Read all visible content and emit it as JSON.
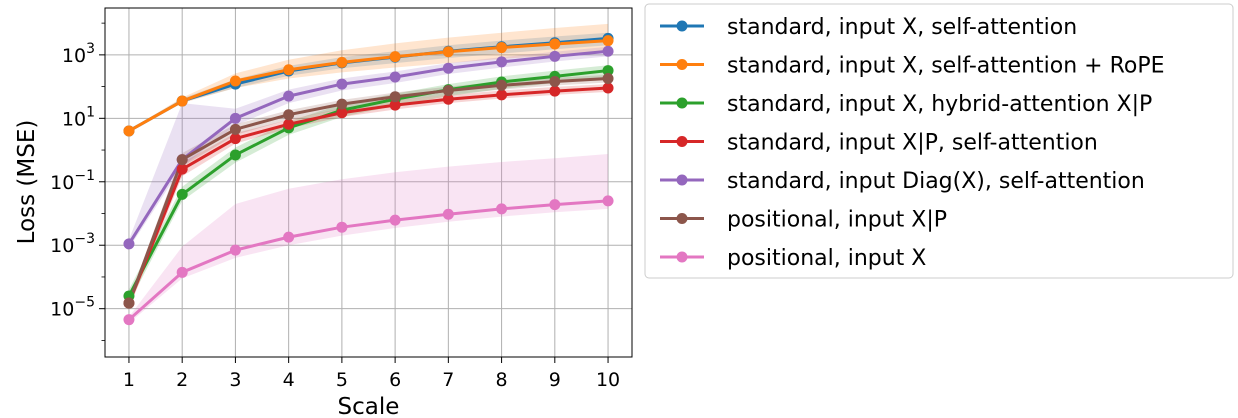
{
  "chart_data": {
    "type": "line",
    "title": "",
    "xlabel": "Scale",
    "ylabel": "Loss (MSE)",
    "x": [
      1,
      2,
      3,
      4,
      5,
      6,
      7,
      8,
      9,
      10
    ],
    "xlim": [
      0.55,
      10.45
    ],
    "ylim": [
      3e-07,
      30000.0
    ],
    "yscale": "log",
    "grid": true,
    "legend": "outside-right",
    "x_ticks": [
      "1",
      "2",
      "3",
      "4",
      "5",
      "6",
      "7",
      "8",
      "9",
      "10"
    ],
    "y_ticks": [
      {
        "value": 1e-05,
        "base": "10",
        "exp": "−5"
      },
      {
        "value": 0.001,
        "base": "10",
        "exp": "−3"
      },
      {
        "value": 0.1,
        "base": "10",
        "exp": "−1"
      },
      {
        "value": 10,
        "base": "10",
        "exp": "1"
      },
      {
        "value": 1000,
        "base": "10",
        "exp": "3"
      }
    ],
    "series": [
      {
        "name": "standard, input X, self-attention",
        "color": "#1f77b4",
        "values": [
          4,
          35,
          120,
          310,
          560,
          850,
          1300,
          1800,
          2400,
          3300
        ],
        "band_lower": [
          4,
          32,
          90,
          220,
          380,
          550,
          800,
          1100,
          1500,
          2000
        ],
        "band_upper": [
          4.2,
          42,
          170,
          450,
          850,
          1300,
          2000,
          2800,
          3800,
          5000
        ]
      },
      {
        "name": "standard, input X, self-attention + RoPE",
        "color": "#ff7f0e",
        "values": [
          4,
          35,
          150,
          340,
          580,
          880,
          1250,
          1700,
          2200,
          2800
        ],
        "band_lower": [
          3.8,
          30,
          90,
          180,
          280,
          400,
          550,
          750,
          950,
          1200
        ],
        "band_upper": [
          4.3,
          45,
          260,
          700,
          1400,
          2300,
          3500,
          5000,
          7000,
          9500
        ]
      },
      {
        "name": "standard, input X, hybrid-attention X|P",
        "color": "#2ca02c",
        "values": [
          2.5e-05,
          0.04,
          0.7,
          5,
          18,
          40,
          80,
          140,
          210,
          320
        ],
        "band_lower": [
          1.5e-05,
          0.025,
          0.4,
          3,
          11,
          25,
          50,
          85,
          130,
          200
        ],
        "band_upper": [
          4e-05,
          0.07,
          1.2,
          8,
          28,
          60,
          120,
          210,
          320,
          470
        ]
      },
      {
        "name": "standard, input X|P, self-attention",
        "color": "#d62728",
        "values": [
          1.5e-05,
          0.25,
          2.3,
          6.5,
          15,
          26,
          40,
          55,
          72,
          90
        ],
        "band_lower": [
          1e-05,
          0.15,
          1.6,
          4.8,
          11,
          19,
          30,
          42,
          55,
          68
        ],
        "band_upper": [
          2e-05,
          0.4,
          3.4,
          9,
          21,
          36,
          55,
          75,
          98,
          120
        ]
      },
      {
        "name": "standard, input Diag(X), self-attention",
        "color": "#9467bd",
        "values": [
          0.0011,
          0.5,
          10,
          50,
          120,
          200,
          380,
          600,
          900,
          1300
        ],
        "band_lower": [
          0.0008,
          0.3,
          6,
          30,
          75,
          130,
          250,
          400,
          620,
          900
        ],
        "band_upper": [
          0.0015,
          30,
          20,
          80,
          180,
          300,
          550,
          850,
          1250,
          1800
        ]
      },
      {
        "name": "positional, input X|P",
        "color": "#8c564b",
        "values": [
          1.5e-05,
          0.5,
          4.5,
          13,
          28,
          48,
          75,
          110,
          145,
          180
        ],
        "band_lower": [
          1e-05,
          0.3,
          3,
          9,
          20,
          35,
          55,
          80,
          108,
          135
        ],
        "band_upper": [
          2e-05,
          0.8,
          6.5,
          18,
          38,
          65,
          100,
          145,
          190,
          235
        ]
      },
      {
        "name": "positional, input X",
        "color": "#e377c2",
        "values": [
          4.5e-06,
          0.00014,
          0.0007,
          0.0018,
          0.0037,
          0.0062,
          0.0095,
          0.014,
          0.019,
          0.025
        ],
        "band_lower": [
          3.5e-06,
          9e-05,
          0.0004,
          0.001,
          0.002,
          0.0035,
          0.0055,
          0.008,
          0.011,
          0.014
        ],
        "band_upper": [
          5.5e-06,
          0.0009,
          0.02,
          0.06,
          0.12,
          0.2,
          0.3,
          0.42,
          0.55,
          0.75
        ]
      }
    ]
  }
}
